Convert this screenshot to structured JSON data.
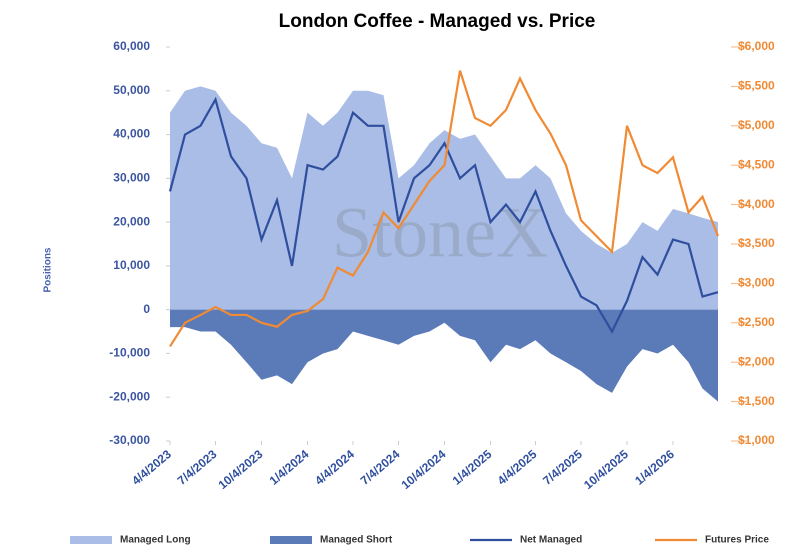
{
  "chart_data": {
    "type": "line",
    "title": "London Coffee - Managed vs. Price",
    "y_label": "Positions",
    "watermark": "StoneX",
    "x": [
      "4/4/2023",
      "5/4/2023",
      "6/4/2023",
      "7/4/2023",
      "8/4/2023",
      "9/4/2023",
      "10/4/2023",
      "11/4/2023",
      "12/4/2023",
      "1/4/2024",
      "2/4/2024",
      "3/4/2024",
      "4/4/2024",
      "5/4/2024",
      "6/4/2024",
      "7/4/2024",
      "8/4/2024",
      "9/4/2024",
      "10/4/2024",
      "11/4/2024",
      "12/4/2024",
      "1/4/2025",
      "2/4/2025",
      "3/4/2025",
      "4/4/2025",
      "5/4/2025",
      "6/4/2025",
      "7/4/2025",
      "8/4/2025",
      "9/4/2025",
      "10/4/2025",
      "11/4/2025",
      "12/4/2025",
      "1/4/2026",
      "2/4/2026",
      "3/4/2026",
      "4/4/2026"
    ],
    "xlim": [
      "4/4/2023",
      "4/18/2026"
    ],
    "xticks": [
      "4/4/2023",
      "7/4/2023",
      "10/4/2023",
      "1/4/2024",
      "4/4/2024",
      "7/4/2024",
      "10/4/2024",
      "1/4/2025",
      "4/4/2025",
      "7/4/2025",
      "10/4/2025",
      "1/4/2026"
    ],
    "series": [
      {
        "name": "Managed Long",
        "kind": "area",
        "color": "#a9bde6",
        "values": [
          45000,
          50000,
          51000,
          50000,
          45000,
          42000,
          38000,
          37000,
          30000,
          45000,
          42000,
          45000,
          50000,
          50000,
          49000,
          30000,
          33000,
          38000,
          41000,
          39000,
          40000,
          35000,
          30000,
          30000,
          33000,
          30000,
          22000,
          18000,
          15000,
          13000,
          15000,
          20000,
          18000,
          23000,
          22000,
          21000,
          20000
        ]
      },
      {
        "name": "Managed Short",
        "kind": "area",
        "color": "#5b7ab8",
        "values": [
          -4000,
          -4000,
          -5000,
          -5000,
          -8000,
          -12000,
          -16000,
          -15000,
          -17000,
          -12000,
          -10000,
          -9000,
          -5000,
          -6000,
          -7000,
          -8000,
          -6000,
          -5000,
          -3000,
          -6000,
          -7000,
          -12000,
          -8000,
          -9000,
          -7000,
          -10000,
          -12000,
          -14000,
          -17000,
          -19000,
          -13000,
          -9000,
          -10000,
          -8000,
          -12000,
          -18000,
          -21000
        ]
      },
      {
        "name": "Net Managed",
        "kind": "line",
        "color": "#2f4f9e",
        "values": [
          27000,
          40000,
          42000,
          48000,
          35000,
          30000,
          16000,
          25000,
          10000,
          33000,
          32000,
          35000,
          45000,
          42000,
          42000,
          20000,
          30000,
          33000,
          38000,
          30000,
          33000,
          20000,
          24000,
          20000,
          27000,
          18000,
          10000,
          3000,
          1000,
          -5000,
          2000,
          12000,
          8000,
          16000,
          15000,
          3000,
          4000
        ]
      },
      {
        "name": "Futures Price",
        "kind": "line",
        "axis": "y2",
        "color": "#f08a34",
        "values": [
          2200,
          2500,
          2600,
          2700,
          2600,
          2600,
          2500,
          2450,
          2600,
          2650,
          2800,
          3200,
          3100,
          3400,
          3900,
          3700,
          4000,
          4300,
          4500,
          5700,
          5100,
          5000,
          5200,
          5600,
          5200,
          4900,
          4500,
          3800,
          3600,
          3400,
          5000,
          4500,
          4400,
          4600,
          3900,
          4100,
          3600
        ]
      }
    ],
    "ylim": [
      -30000,
      60000
    ],
    "yticks": [
      {
        "value": -30000,
        "label": "-30,000"
      },
      {
        "value": -20000,
        "label": "-20,000"
      },
      {
        "value": -10000,
        "label": "-10,000"
      },
      0,
      {
        "value": 10000,
        "label": "10,000"
      },
      {
        "value": 20000,
        "label": "20,000"
      },
      {
        "value": 30000,
        "label": "30,000"
      },
      {
        "value": 40000,
        "label": "40,000"
      },
      {
        "value": 50000,
        "label": "50,000"
      },
      {
        "value": 60000,
        "label": "60,000"
      }
    ],
    "y2lim": [
      1000,
      6000
    ],
    "y2ticks": [
      {
        "value": 1000,
        "label": "$1,000"
      },
      {
        "value": 1500,
        "label": "$1,500"
      },
      {
        "value": 2000,
        "label": "$2,000"
      },
      {
        "value": 2500,
        "label": "$2,500"
      },
      {
        "value": 3000,
        "label": "$3,000"
      },
      {
        "value": 3500,
        "label": "$3,500"
      },
      {
        "value": 4000,
        "label": "$4,000"
      },
      {
        "value": 4500,
        "label": "$4,500"
      },
      {
        "value": 5000,
        "label": "$5,000"
      },
      {
        "value": 5500,
        "label": "$5,500"
      },
      {
        "value": 6000,
        "label": "$6,000"
      }
    ],
    "legend": "bottom"
  }
}
